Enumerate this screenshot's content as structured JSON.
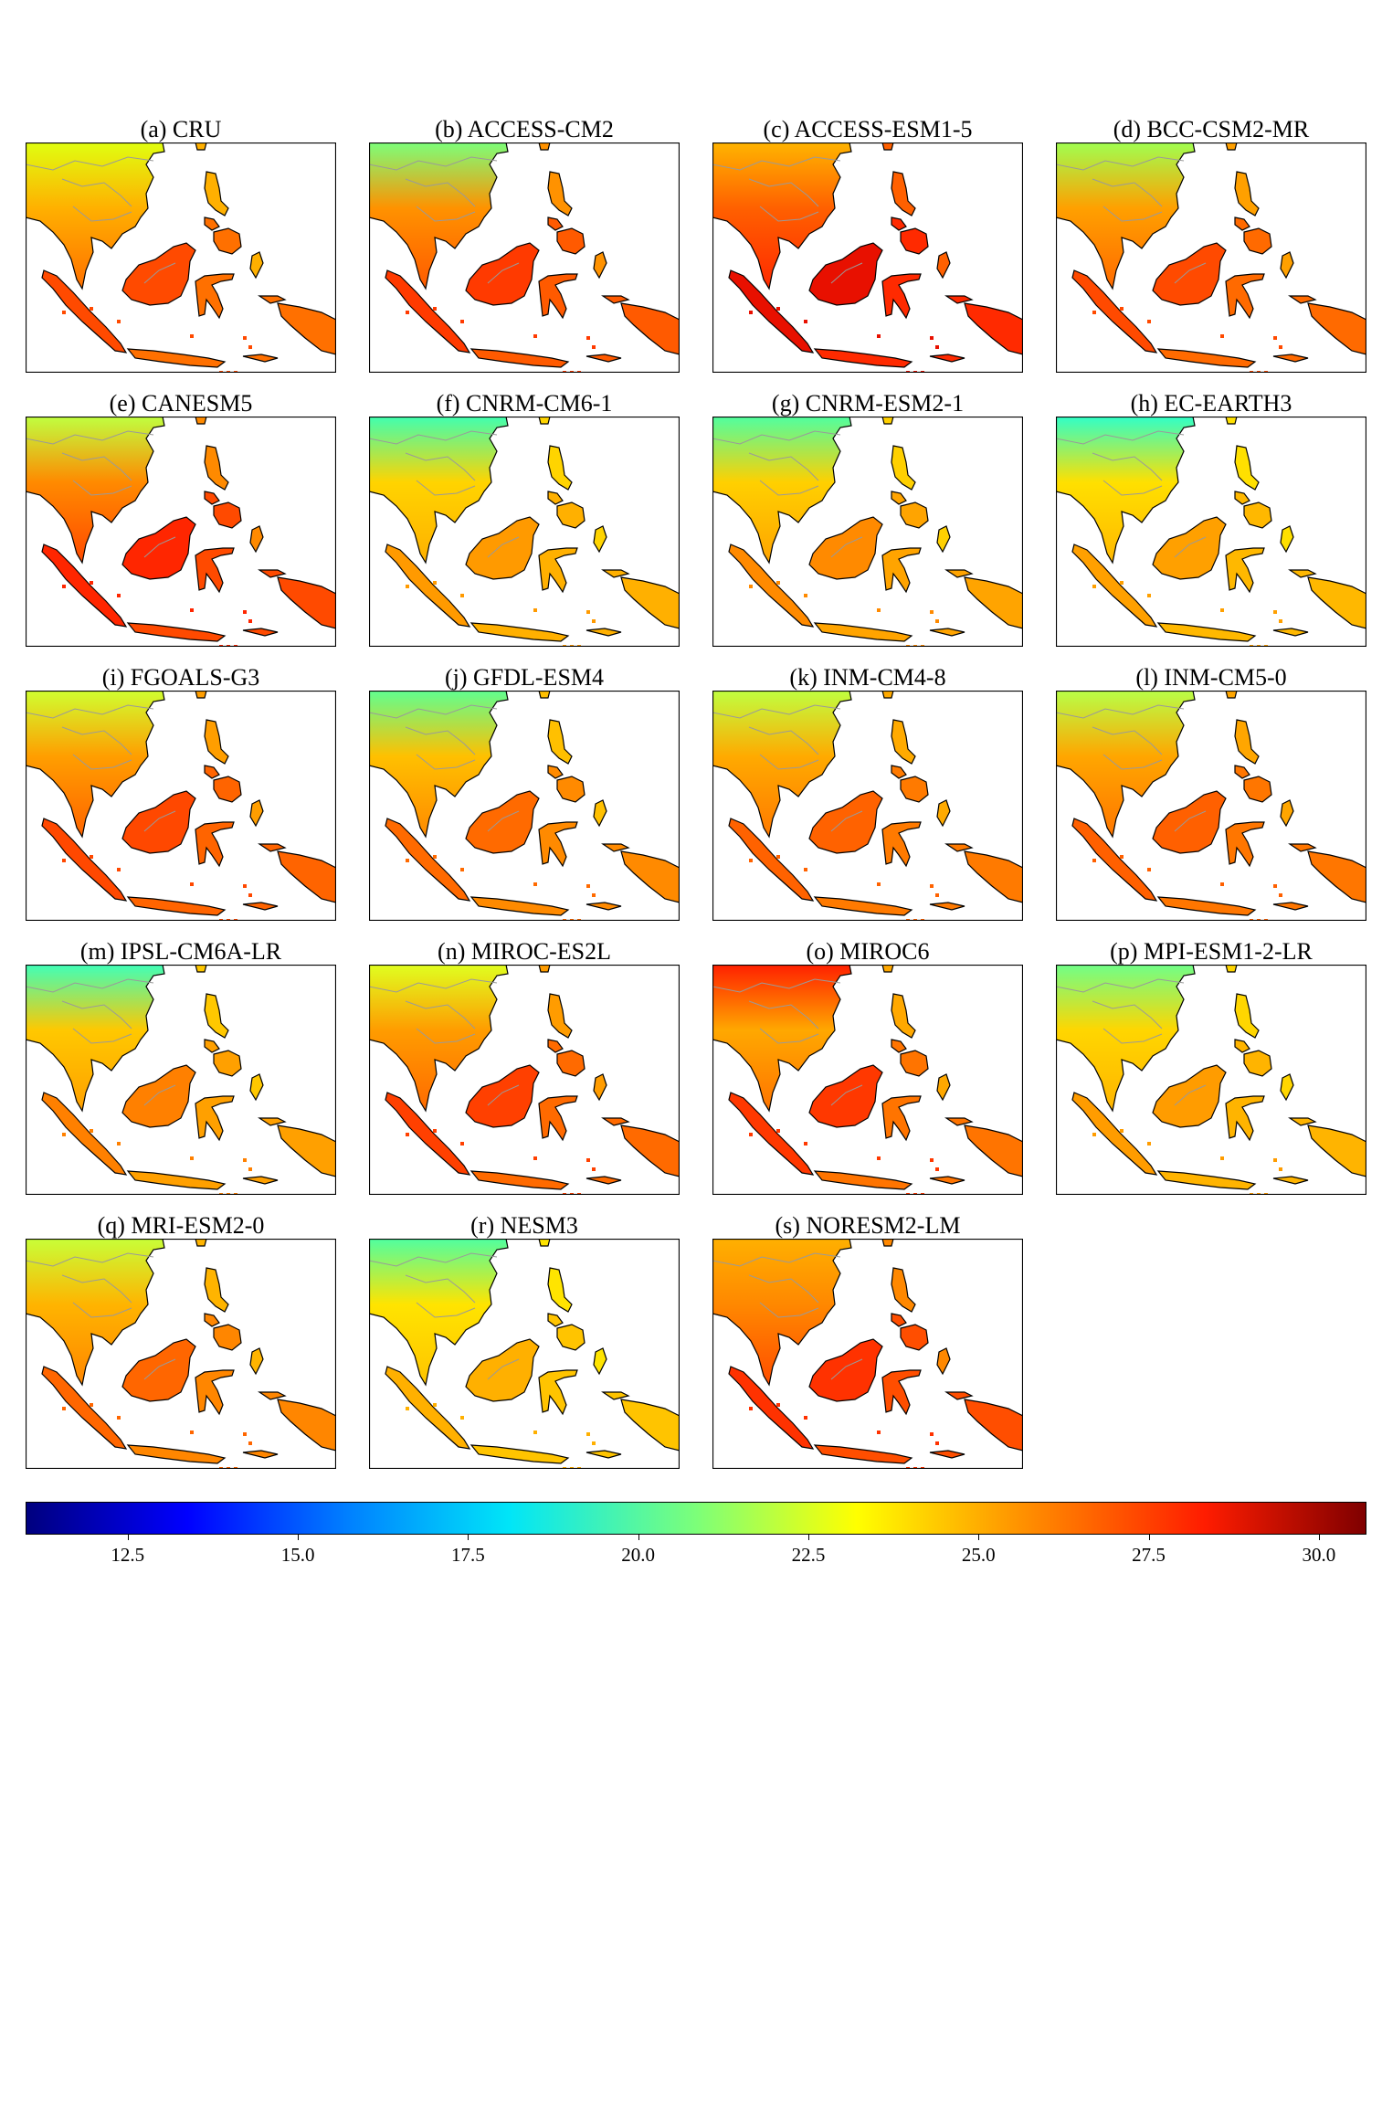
{
  "panels": [
    {
      "label": "(a) CRU",
      "palette": [
        "#ff7000",
        "#ff4a00",
        "#ffb000",
        "#e0ff10"
      ]
    },
    {
      "label": "(b) ACCESS-CM2",
      "palette": [
        "#ff5a00",
        "#ff3a00",
        "#ff9200",
        "#7cff7a"
      ]
    },
    {
      "label": "(c) ACCESS-ESM1-5",
      "palette": [
        "#ff2a00",
        "#e81000",
        "#ff6000",
        "#ffb400"
      ]
    },
    {
      "label": "(d) BCC-CSM2-MR",
      "palette": [
        "#ff6a00",
        "#ff4a00",
        "#ffa000",
        "#a0ff50"
      ]
    },
    {
      "label": "(e) CANESM5",
      "palette": [
        "#ff4a00",
        "#ff2600",
        "#ff8a00",
        "#c0ff40"
      ]
    },
    {
      "label": "(f) CNRM-CM6-1",
      "palette": [
        "#ffb000",
        "#ff9a00",
        "#ffd400",
        "#40ffb0"
      ]
    },
    {
      "label": "(g) CNRM-ESM2-1",
      "palette": [
        "#ffa400",
        "#ff8a00",
        "#ffd000",
        "#50ffa0"
      ]
    },
    {
      "label": "(h) EC-EARTH3",
      "palette": [
        "#ffb800",
        "#ffa000",
        "#ffe000",
        "#30ffc8"
      ]
    },
    {
      "label": "(i) FGOALS-G3",
      "palette": [
        "#ff6400",
        "#ff4800",
        "#ff9e00",
        "#d0ff30"
      ]
    },
    {
      "label": "(j) GFDL-ESM4",
      "palette": [
        "#ff8a00",
        "#ff6a00",
        "#ffc000",
        "#60ff90"
      ]
    },
    {
      "label": "(k) INM-CM4-8",
      "palette": [
        "#ff7a00",
        "#ff6200",
        "#ffaa00",
        "#c0ff40"
      ]
    },
    {
      "label": "(l) INM-CM5-0",
      "palette": [
        "#ff7600",
        "#ff6000",
        "#ffa600",
        "#b8ff48"
      ]
    },
    {
      "label": "(m) IPSL-CM6A-LR",
      "palette": [
        "#ffa000",
        "#ff8000",
        "#ffc800",
        "#40ffb8"
      ]
    },
    {
      "label": "(n) MIROC-ES2L",
      "palette": [
        "#ff6a00",
        "#ff4000",
        "#ff9c00",
        "#e0ff20"
      ]
    },
    {
      "label": "(o) MIROC6",
      "palette": [
        "#ff7400",
        "#ff3800",
        "#ffa800",
        "#ff2000"
      ]
    },
    {
      "label": "(p) MPI-ESM1-2-LR",
      "palette": [
        "#ffb400",
        "#ff9c00",
        "#ffd600",
        "#70ff88"
      ]
    },
    {
      "label": "(q) MRI-ESM2-0",
      "palette": [
        "#ff8600",
        "#ff6600",
        "#ffb400",
        "#c8ff38"
      ]
    },
    {
      "label": "(r) NESM3",
      "palette": [
        "#ffc400",
        "#ffb000",
        "#ffe400",
        "#50ffa0"
      ]
    },
    {
      "label": "(s) NORESM2-LM",
      "palette": [
        "#ff4e00",
        "#ff3200",
        "#ff8800",
        "#ffb000"
      ]
    }
  ],
  "colorbar": {
    "min": 11.0,
    "max": 30.7,
    "ticks": [
      "12.5",
      "15.0",
      "17.5",
      "20.0",
      "22.5",
      "25.0",
      "27.5",
      "30.0"
    ]
  }
}
